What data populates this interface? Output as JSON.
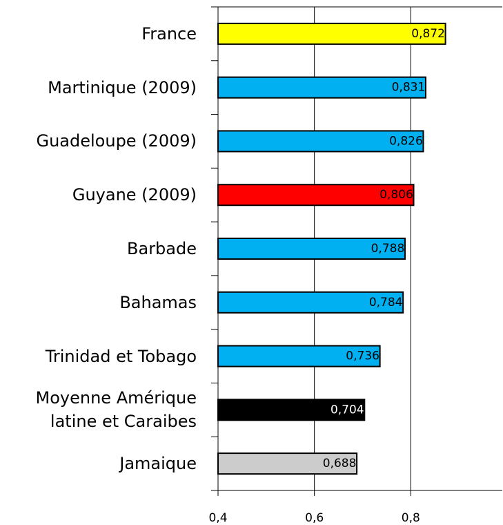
{
  "chart_data": {
    "type": "hbar",
    "categories": [
      "France",
      "Martinique (2009)",
      "Guadeloupe (2009)",
      "Guyane (2009)",
      "Barbade",
      "Bahamas",
      "Trinidad et Tobago",
      "Moyenne Amérique latine et Caraibes",
      "Jamaique"
    ],
    "values": [
      0.872,
      0.831,
      0.826,
      0.806,
      0.788,
      0.784,
      0.736,
      0.704,
      0.688
    ],
    "value_labels": [
      "0,872",
      "0,831",
      "0,826",
      "0,806",
      "0,788",
      "0,784",
      "0,736",
      "0,704",
      "0,688"
    ],
    "colors": [
      "#ffff00",
      "#00b0f0",
      "#00b0f0",
      "#ff0000",
      "#00b0f0",
      "#00b0f0",
      "#00b0f0",
      "#000000",
      "#cccccc"
    ],
    "xlim": [
      0.4,
      0.99
    ],
    "xticks": [
      {
        "value": 0.4,
        "label": "0,4"
      },
      {
        "value": 0.6,
        "label": "0,6"
      },
      {
        "value": 0.8,
        "label": "0,8"
      }
    ],
    "grid": true
  }
}
